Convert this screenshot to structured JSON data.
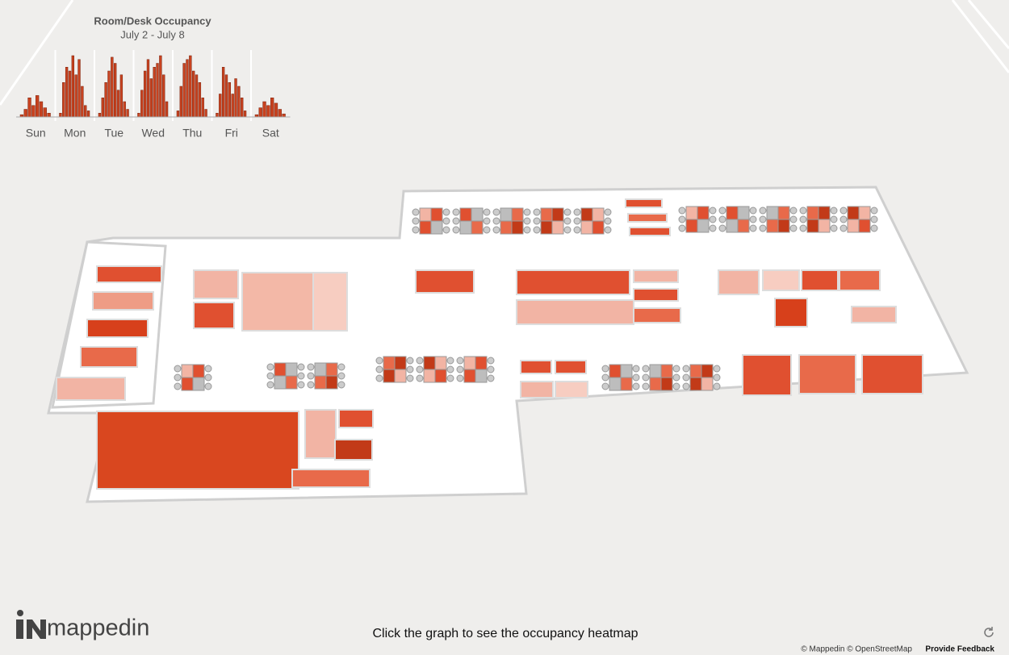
{
  "chart_data": {
    "type": "bar",
    "title": "Room/Desk Occupancy",
    "subtitle": "July 2 - July 8",
    "color": "#c8421f",
    "groups": [
      {
        "name": "Sun",
        "values": [
          3,
          10,
          25,
          15,
          28,
          20,
          12,
          5
        ]
      },
      {
        "name": "Mon",
        "values": [
          5,
          45,
          65,
          60,
          80,
          55,
          75,
          40,
          15,
          8
        ]
      },
      {
        "name": "Tue",
        "values": [
          5,
          25,
          45,
          60,
          78,
          70,
          35,
          55,
          20,
          10
        ]
      },
      {
        "name": "Wed",
        "values": [
          5,
          35,
          60,
          75,
          50,
          65,
          70,
          80,
          55,
          20
        ]
      },
      {
        "name": "Thu",
        "values": [
          8,
          40,
          70,
          75,
          80,
          60,
          55,
          45,
          25,
          10
        ]
      },
      {
        "name": "Fri",
        "values": [
          5,
          30,
          65,
          55,
          45,
          30,
          50,
          40,
          25,
          8
        ]
      },
      {
        "name": "Sat",
        "values": [
          3,
          12,
          20,
          15,
          25,
          18,
          10,
          4
        ]
      }
    ]
  },
  "footer": {
    "logo": "mappedin",
    "hint": "Click the graph to see the occupancy heatmap",
    "attribution": "© Mappedin © OpenStreetMap",
    "feedback": "Provide Feedback"
  }
}
